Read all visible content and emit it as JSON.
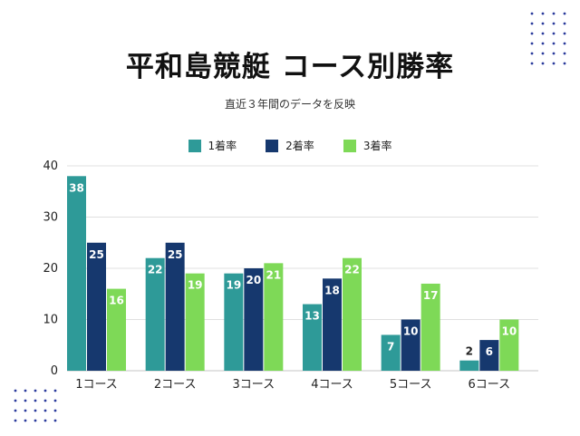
{
  "title": "平和島競艇 コース別勝率",
  "subtitle": "直近３年間のデータを反映",
  "colors": {
    "series1": "#2e9a98",
    "series2": "#16386e",
    "series3": "#7ed957",
    "grid": "#e0e0e0",
    "axis": "#d8d8d8",
    "dots": "#2a3a9c"
  },
  "chart_data": {
    "type": "bar",
    "categories": [
      "1コース",
      "2コース",
      "3コース",
      "4コース",
      "5コース",
      "6コース"
    ],
    "series": [
      {
        "name": "1着率",
        "values": [
          38,
          22,
          19,
          13,
          7,
          2
        ]
      },
      {
        "name": "2着率",
        "values": [
          25,
          25,
          20,
          18,
          10,
          6
        ]
      },
      {
        "name": "3着率",
        "values": [
          16,
          19,
          21,
          22,
          17,
          10
        ]
      }
    ],
    "ylim": [
      0,
      40
    ],
    "yticks": [
      0,
      10,
      20,
      30,
      40
    ],
    "grid": true,
    "legend": "top"
  }
}
